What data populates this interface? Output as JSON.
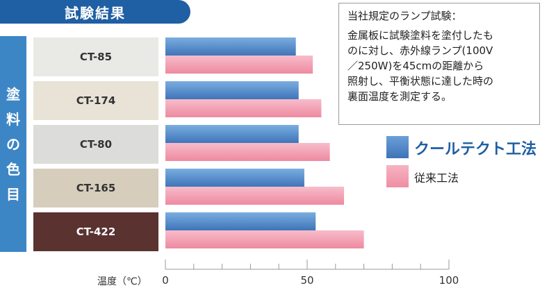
{
  "header": {
    "title": "試験結果"
  },
  "note": {
    "title": "当社規定のランプ試験：",
    "body": "金属板に試験塗料を塗付したも\nのに対し、赤外線ランプ(100V\n／250W)を45cmの距離から\n照射し、平衡状態に達した時の\n裏面温度を測定する。"
  },
  "side_label": "塗料の色目",
  "colors": {
    "title_pill": "#1f5fa3",
    "side_bar": "#3d86c6",
    "cool_tect": "#5489c8",
    "conventional": "#f59fb2"
  },
  "chart_data": {
    "type": "bar",
    "orientation": "horizontal",
    "categories": [
      "CT-85",
      "CT-174",
      "CT-80",
      "CT-165",
      "CT-422"
    ],
    "category_colors": [
      "#e9e9e6",
      "#e8e3d6",
      "#dcdcda",
      "#d6cdbd",
      "#5a3230"
    ],
    "category_text_colors": [
      "#333333",
      "#333333",
      "#333333",
      "#333333",
      "#ffffff"
    ],
    "series": [
      {
        "name": "クールテクト工法",
        "values": [
          46,
          47,
          47,
          49,
          53
        ],
        "color": "#5489c8"
      },
      {
        "name": "従来工法",
        "values": [
          52,
          55,
          58,
          63,
          70
        ],
        "color": "#f59fb2"
      }
    ],
    "xlabel": "温度（℃）",
    "xlim": [
      0,
      100
    ],
    "ticks": [
      0,
      50,
      100
    ],
    "tick_labels": [
      "0",
      "50",
      "100"
    ],
    "legend_position": "right",
    "grid": false
  }
}
